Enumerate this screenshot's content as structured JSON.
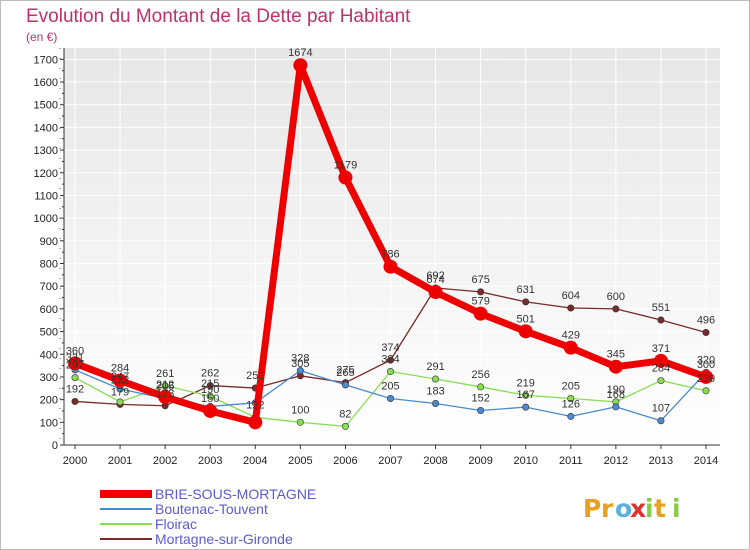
{
  "chart_data": {
    "type": "line",
    "title": "Evolution du Montant de la Dette par Habitant",
    "subtitle": "(en €)",
    "xlabel": "",
    "ylabel": "",
    "ylim": [
      0,
      1750
    ],
    "yticks": [
      "0",
      "100",
      "200",
      "300",
      "400",
      "500",
      "600",
      "700",
      "800",
      "900",
      "1000",
      "1100",
      "1200",
      "1300",
      "1400",
      "1500",
      "1600",
      "1700"
    ],
    "categories": [
      "2000",
      "2001",
      "2002",
      "2003",
      "2004",
      "2005",
      "2006",
      "2007",
      "2008",
      "2009",
      "2010",
      "2011",
      "2012",
      "2013",
      "2014"
    ],
    "series": [
      {
        "name": "Mortagne-sur-Gironde",
        "color": "#7a2a2a",
        "values": [
          192,
          179,
          173,
          262,
          251,
          305,
          275,
          374,
          692,
          675,
          631,
          604,
          600,
          551,
          496
        ],
        "labels": [
          "192",
          "",
          "",
          "262",
          "251",
          "",
          "",
          "374",
          "692",
          "675",
          "631",
          "604",
          "600",
          "551",
          "496"
        ]
      },
      {
        "name": "Floirac",
        "color": "#88dd55",
        "values": [
          297,
          190,
          261,
          215,
          122,
          100,
          82,
          324,
          291,
          256,
          219,
          205,
          190,
          284,
          239
        ],
        "labels": [
          "",
          "",
          "261",
          "215",
          "",
          "100",
          "82",
          "324",
          "291",
          "256",
          "219",
          "205",
          "190",
          "284",
          ""
        ]
      },
      {
        "name": "Boutenac-Touvent",
        "color": "#4a8ad0",
        "values": [
          331,
          247,
          205,
          170,
          186,
          328,
          265,
          205,
          183,
          152,
          167,
          126,
          168,
          107,
          320
        ],
        "labels": [
          "",
          "",
          "",
          "",
          "",
          "328",
          "265",
          "205",
          "183",
          "152",
          "167",
          "126",
          "168",
          "107",
          "320"
        ]
      },
      {
        "name": "BRIE-SOUS-MORTAGNE",
        "color": "#ee0000",
        "values": [
          360,
          284,
          212,
          150,
          100,
          1674,
          1179,
          786,
          674,
          579,
          501,
          429,
          345,
          371,
          300
        ],
        "labels": [
          "360",
          "284",
          "212",
          "150",
          "",
          "1674",
          "1179",
          "786",
          "674",
          "579",
          "501",
          "429",
          "345",
          "371",
          "300"
        ]
      }
    ],
    "extra_labels": [
      "331",
      "232",
      "247",
      "205",
      "190",
      "122",
      "305",
      "275",
      "297",
      "179",
      "173",
      "239"
    ]
  },
  "legend": {
    "items": [
      {
        "name": "BRIE-SOUS-MORTAGNE",
        "color": "#ee0000"
      },
      {
        "name": "Boutenac-Touvent",
        "color": "#4a8ad0"
      },
      {
        "name": "Floirac",
        "color": "#88dd55"
      },
      {
        "name": "Mortagne-sur-Gironde",
        "color": "#7a2a2a"
      }
    ]
  },
  "logo": {
    "letters": [
      {
        "ch": "P",
        "color": "#e8a020"
      },
      {
        "ch": "r",
        "color": "#e8a020"
      },
      {
        "ch": "o",
        "color": "#5ab0e0"
      },
      {
        "ch": "x",
        "color": "#e03030"
      },
      {
        "ch": "i",
        "color": "#88cc44"
      },
      {
        "ch": "t",
        "color": "#e8a020"
      },
      {
        "ch": "i",
        "color": "#88cc44"
      }
    ]
  }
}
